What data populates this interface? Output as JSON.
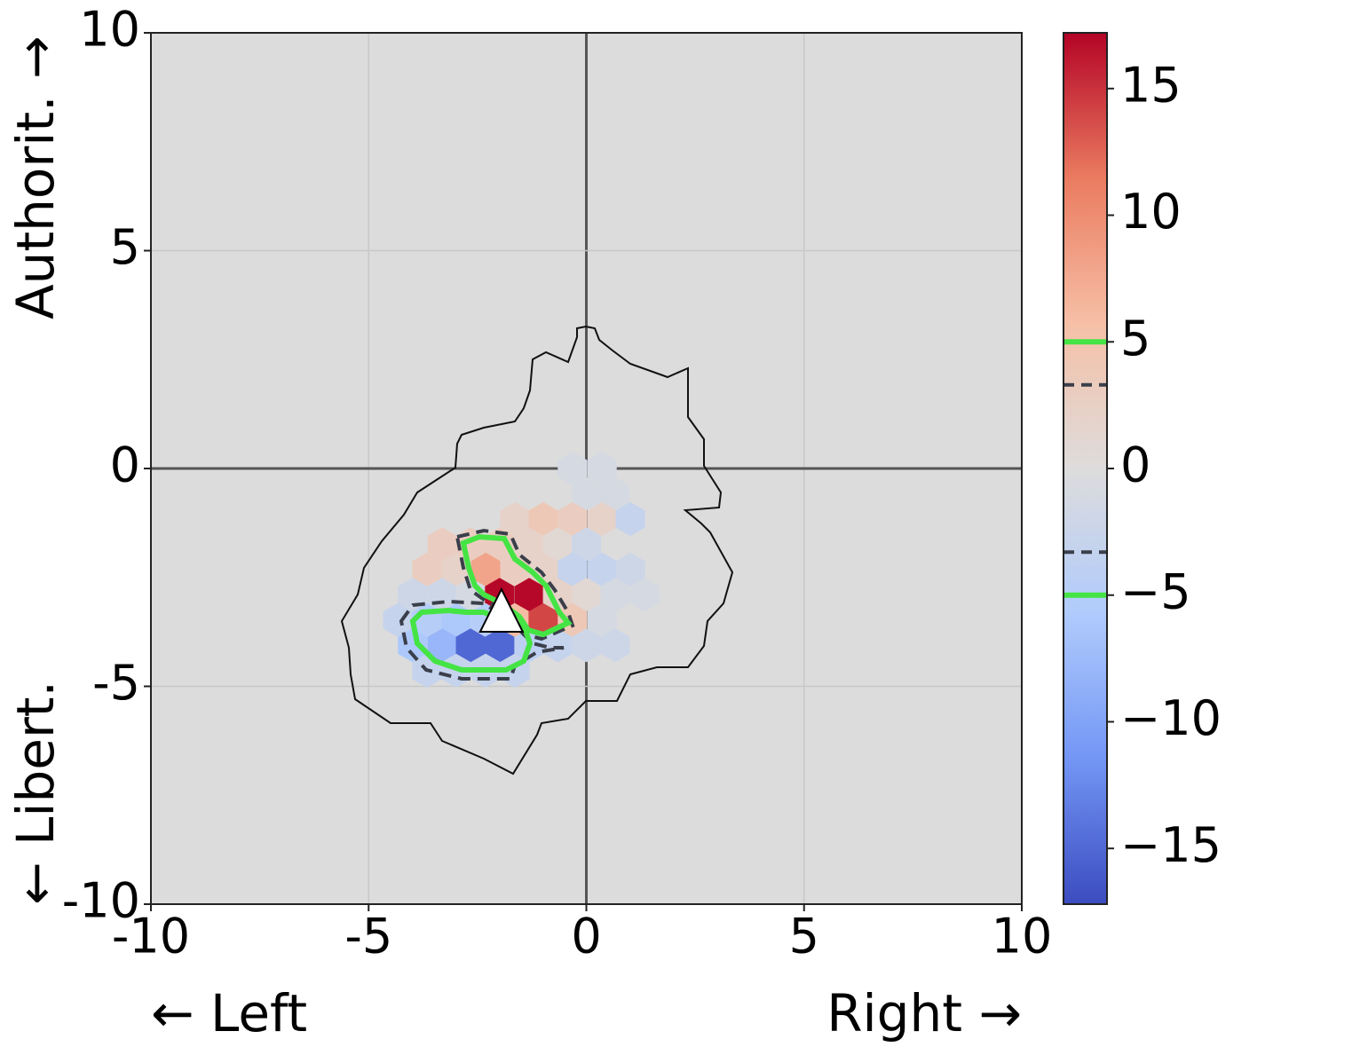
{
  "chart_data": {
    "type": "hexbin",
    "x_label_left": "← Left",
    "x_label_right": "Right →",
    "y_label_top": "Authorit. →",
    "y_label_bottom": "← Libert.",
    "xlim": [
      -10,
      10
    ],
    "ylim": [
      -10,
      10
    ],
    "xticks": [
      -10,
      -5,
      0,
      5,
      10
    ],
    "yticks": [
      -10,
      -5,
      0,
      5,
      10
    ],
    "grid": true,
    "background": "#dcdcdc",
    "hexbins": {
      "x": [
        -0.32,
        0.36,
        0,
        0.66,
        -1.64,
        -0.99,
        -0.32,
        0.36,
        1.01,
        -3.31,
        -2.66,
        -1.99,
        -1.31,
        -0.66,
        0,
        -3.66,
        -2.99,
        -2.31,
        -1.64,
        -0.99,
        -0.32,
        0.36,
        1.01,
        -3.99,
        -3.31,
        -2.66,
        -1.99,
        -1.31,
        -0.66,
        0,
        0.66,
        1.34,
        -4.33,
        -3.66,
        -2.99,
        -2.31,
        -1.64,
        -0.99,
        -0.32,
        0.36,
        -3.99,
        -3.31,
        -2.66,
        -1.99,
        -1.31,
        -0.66,
        0,
        0.66,
        -3.66,
        -2.99,
        -2.31,
        -1.64
      ],
      "y": [
        0,
        0,
        -0.58,
        -0.58,
        -1.16,
        -1.16,
        -1.16,
        -1.16,
        -1.16,
        -1.74,
        -1.74,
        -1.74,
        -1.74,
        -1.74,
        -1.74,
        -2.32,
        -2.32,
        -2.32,
        -2.32,
        -2.32,
        -2.32,
        -2.32,
        -2.32,
        -2.9,
        -2.9,
        -2.9,
        -2.9,
        -2.9,
        -2.9,
        -2.9,
        -2.9,
        -2.9,
        -3.48,
        -3.48,
        -3.48,
        -3.48,
        -3.48,
        -3.48,
        -3.48,
        -3.48,
        -4.06,
        -4.06,
        -4.06,
        -4.06,
        -4.06,
        -4.06,
        -4.06,
        -4.06,
        -4.64,
        -4.64,
        -4.64,
        -4.64
      ],
      "values": [
        -1,
        -1,
        -1,
        -1,
        2,
        4,
        3,
        2,
        -3,
        3,
        3,
        3,
        2,
        1,
        -2,
        3,
        2,
        8,
        3,
        2,
        -3,
        -3,
        -2,
        -2,
        -2,
        -1,
        17,
        17,
        2,
        1,
        -1,
        -1,
        -3,
        -5,
        -6,
        -5,
        6,
        14,
        4,
        -1,
        -6,
        -8,
        -15,
        -15,
        -4,
        -3,
        -2,
        -2,
        -3,
        -3,
        -3,
        -3
      ]
    },
    "marker": {
      "x": -1.95,
      "y": -3.3,
      "color": "#ffffff"
    },
    "clim": [
      -17.2,
      17.2
    ],
    "colormap": [
      "#3b4cc0",
      "#7396f5",
      "#b0cbfc",
      "#dddcdc",
      "#f6bfa6",
      "#ea7b60",
      "#b40426"
    ],
    "cticks": [
      {
        "value": 15,
        "label": "15"
      },
      {
        "value": 10,
        "label": "10"
      },
      {
        "value": 5,
        "label": "5"
      },
      {
        "value": 0,
        "label": "0"
      },
      {
        "value": -5,
        "label": "−5"
      },
      {
        "value": -10,
        "label": "−10"
      },
      {
        "value": -15,
        "label": "−15"
      }
    ],
    "contour_levels": [
      {
        "value": 5,
        "color": "#44e444",
        "style": "solid"
      },
      {
        "value": 3.3,
        "color": "#3a3f4a",
        "style": "dashed"
      },
      {
        "value": -3.3,
        "color": "#3a3f4a",
        "style": "dashed"
      },
      {
        "value": -5,
        "color": "#44e444",
        "style": "solid"
      }
    ]
  }
}
